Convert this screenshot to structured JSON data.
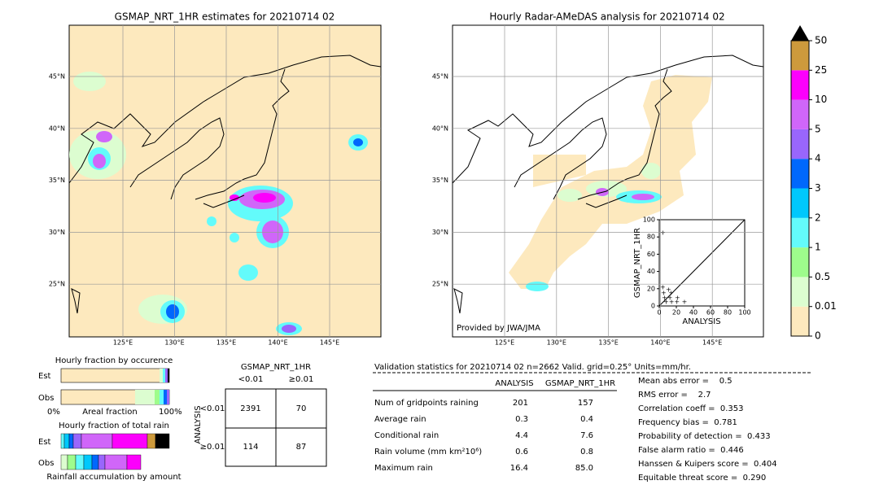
{
  "left_map": {
    "title": "GSMAP_NRT_1HR estimates for 20210714 02",
    "lat_labels": [
      "45°N",
      "40°N",
      "35°N",
      "30°N",
      "25°N"
    ],
    "lon_labels": [
      "125°E",
      "130°E",
      "135°E",
      "140°E",
      "145°E"
    ]
  },
  "right_map": {
    "title": "Hourly Radar-AMeDAS analysis for 20210714 02",
    "lat_labels": [
      "45°N",
      "40°N",
      "35°N",
      "30°N",
      "25°N"
    ],
    "lon_labels": [
      "125°E",
      "130°E",
      "135°E",
      "140°E",
      "145°E"
    ],
    "credit": "Provided by JWA/JMA"
  },
  "colorbar": {
    "labels": [
      "0",
      "0.01",
      "0.5",
      "1",
      "2",
      "3",
      "4",
      "5",
      "10",
      "25",
      "50"
    ],
    "colors": [
      "#fde9be",
      "#dcfdd0",
      "#9efc8c",
      "#63fbfb",
      "#00c8fc",
      "#0068fc",
      "#9966fc",
      "#d066f9",
      "#fc00fc",
      "#cd9a3c"
    ]
  },
  "scatter": {
    "xlabel": "ANALYSIS",
    "ylabel": "GSMAP_NRT_1HR",
    "ticks": [
      0,
      20,
      40,
      60,
      80,
      100
    ]
  },
  "fraction": {
    "occurrence_title": "Hourly fraction by occurence",
    "est": "Est",
    "obs": "Obs",
    "left": "0%",
    "middle": "Areal fraction",
    "right": "100%",
    "total_title": "Hourly fraction of total rain",
    "total_est": "Est",
    "total_obs": "Obs",
    "accum": "Rainfall accumulation by amount"
  },
  "contingency": {
    "title": "GSMAP_NRT_1HR",
    "cols": [
      "<0.01",
      "≥0.01"
    ],
    "row_title": "ANALYSIS",
    "rows": [
      "<0.01",
      "≥0.01"
    ],
    "cells": [
      [
        "2391",
        "70"
      ],
      [
        "114",
        "87"
      ]
    ]
  },
  "stats": {
    "title": "Validation statistics for 20210714 02  n=2662 Valid. grid=0.25° Units=mm/hr.",
    "columns": [
      "ANALYSIS",
      "GSMAP_NRT_1HR"
    ],
    "rows": [
      [
        "Num of gridpoints raining",
        "201",
        "157"
      ],
      [
        "Average rain",
        "0.3",
        "0.4"
      ],
      [
        "Conditional rain",
        "4.4",
        "7.6"
      ],
      [
        "Rain volume (mm km²10⁶)",
        "0.6",
        "0.8"
      ],
      [
        "Maximum rain",
        "16.4",
        "85.0"
      ]
    ],
    "scores": [
      "Mean abs error =    0.5",
      "RMS error =    2.7",
      "Correlation coeff =  0.353",
      "Frequency bias =  0.781",
      "Probability of detection =  0.433",
      "False alarm ratio =  0.446",
      "Hanssen & Kuipers score =  0.404",
      "Equitable threat score =  0.290"
    ]
  }
}
